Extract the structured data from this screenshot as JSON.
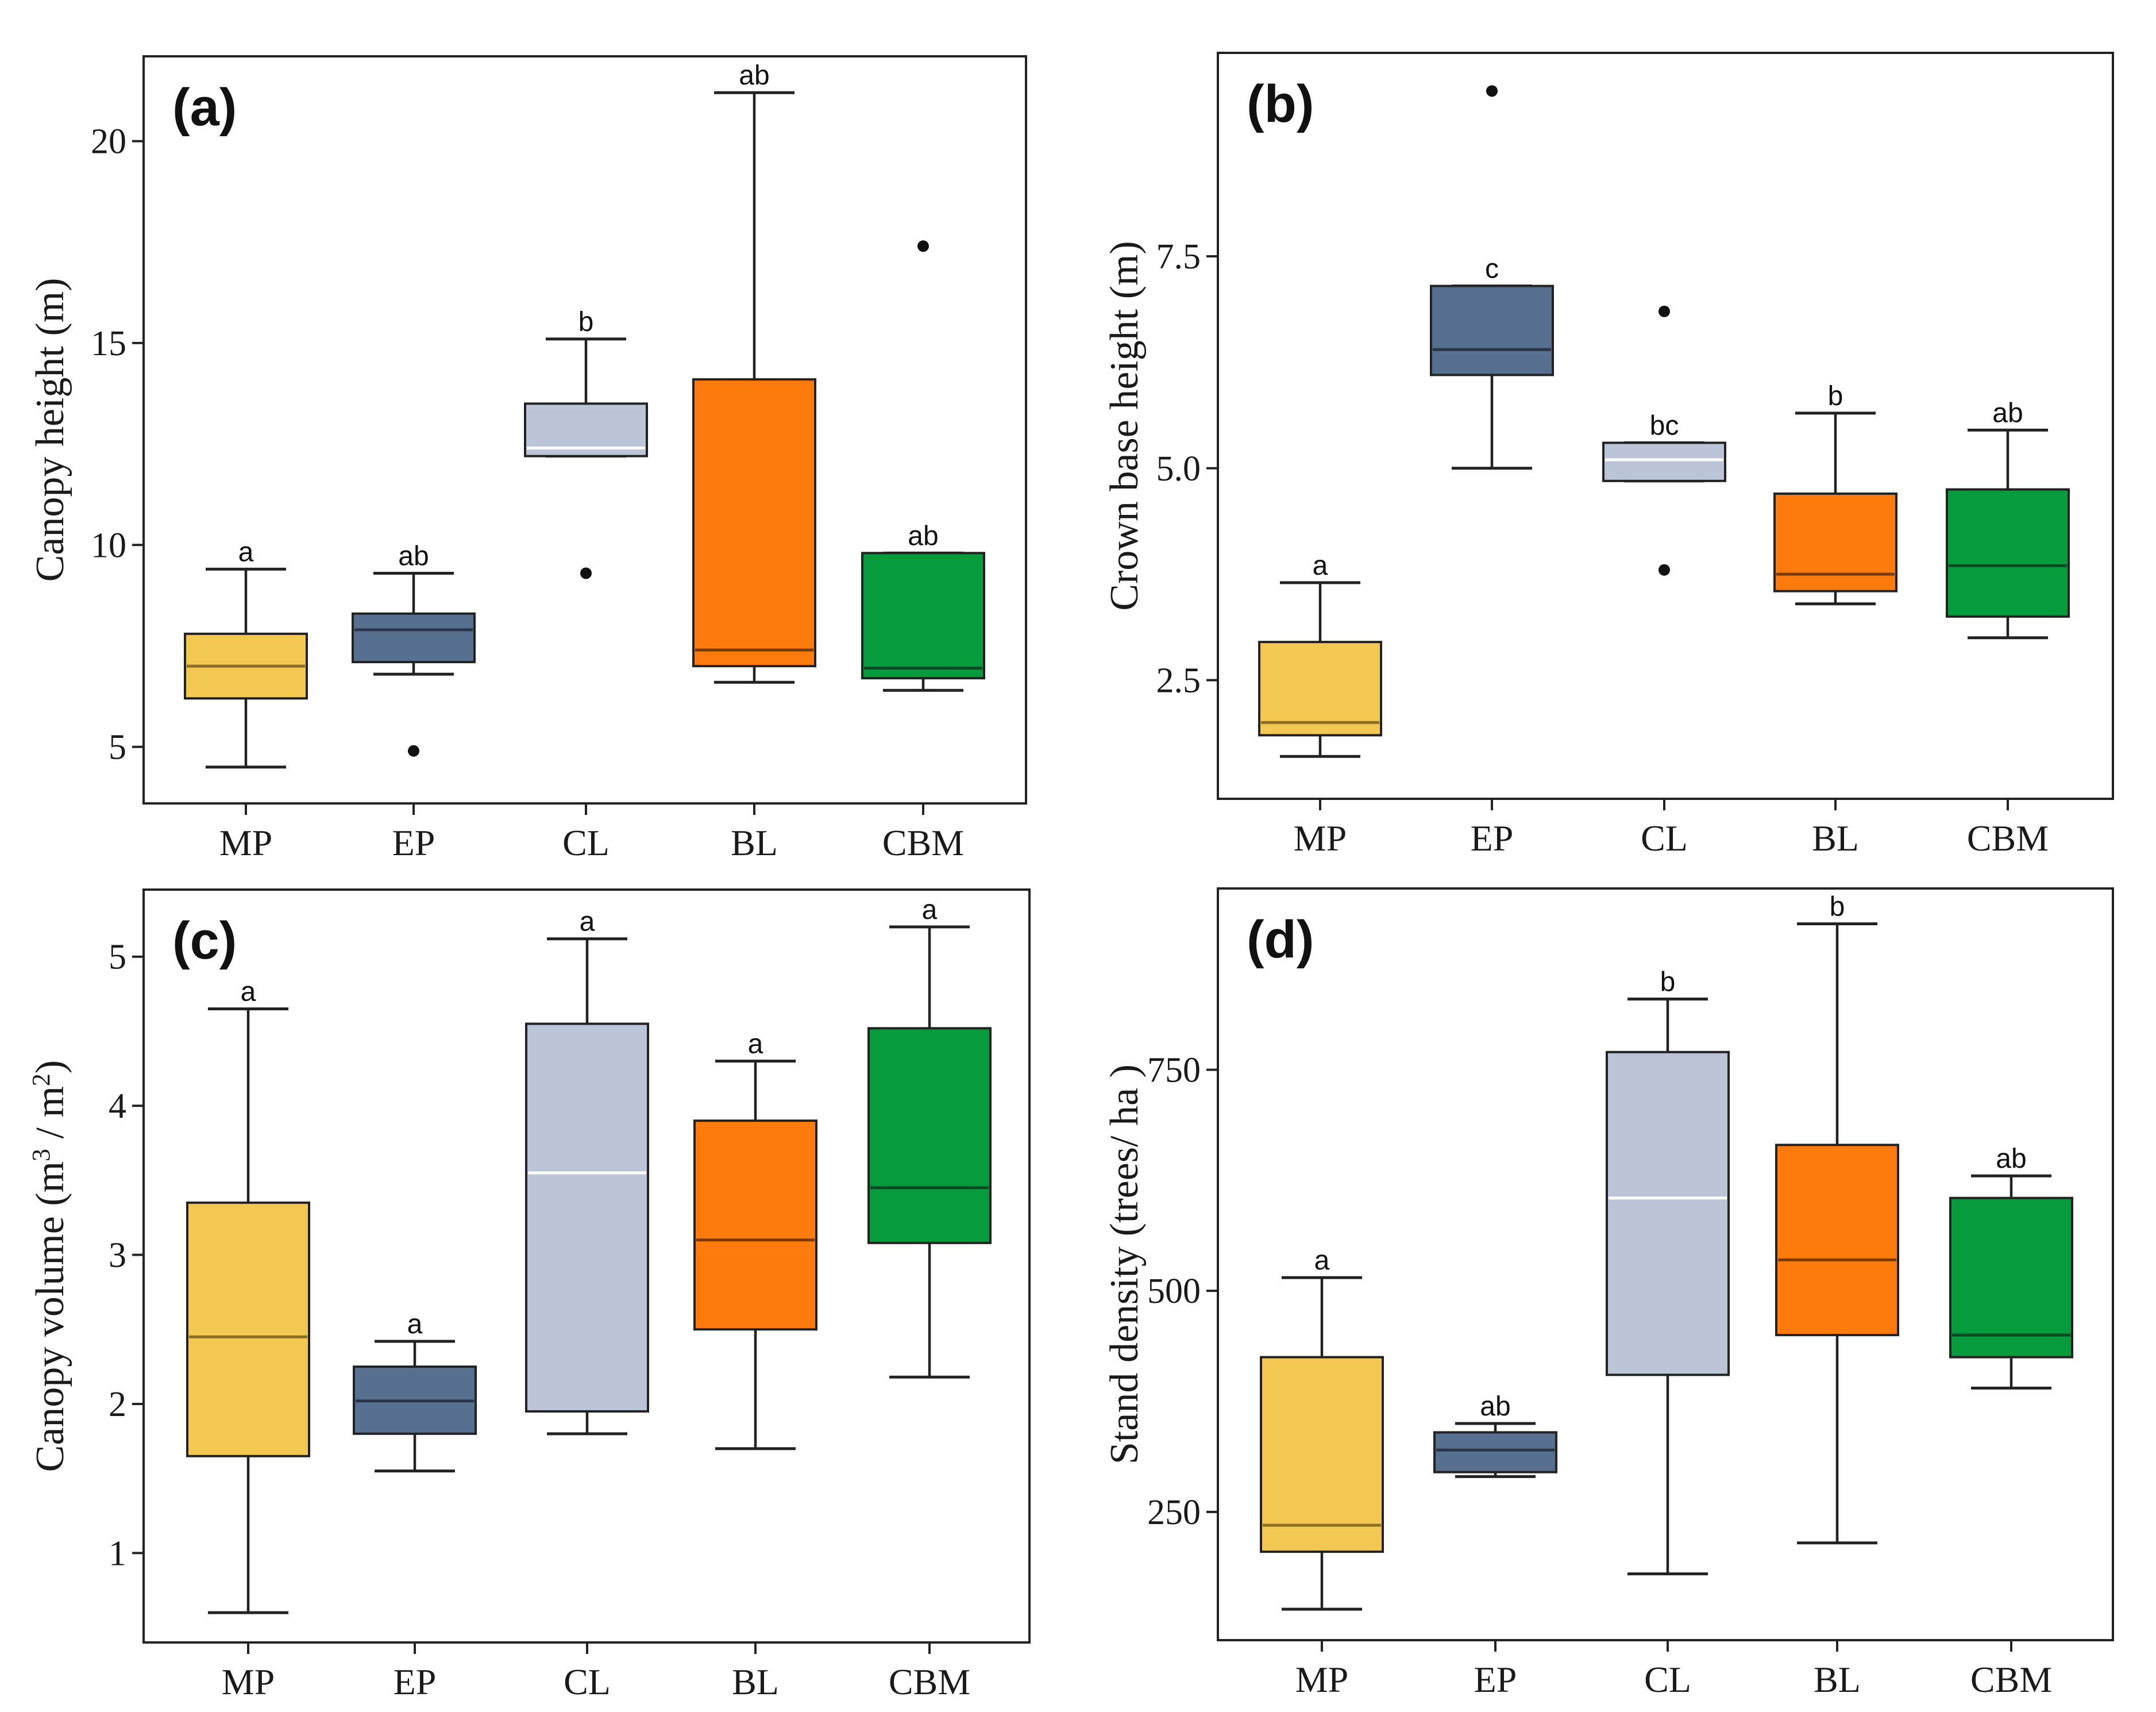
{
  "chart_data": [
    {
      "id": "a",
      "type": "box",
      "panel_label": "(a)",
      "ylabel": "Canopy height (m)",
      "ylabel_parts": [
        {
          "t": "Canopy height (m)"
        }
      ],
      "categories": [
        "MP",
        "EP",
        "CL",
        "BL",
        "CBM"
      ],
      "yticks": [
        5,
        10,
        15,
        20
      ],
      "ylim": [
        3.6,
        22.1
      ],
      "series": [
        {
          "name": "MP",
          "min": 4.5,
          "q1": 6.2,
          "median": 7.0,
          "q3": 7.8,
          "max": 9.4,
          "outliers": [],
          "letter": "a"
        },
        {
          "name": "EP",
          "min": 6.8,
          "q1": 7.1,
          "median": 7.9,
          "q3": 8.3,
          "max": 9.3,
          "outliers": [
            4.9
          ],
          "letter": "ab"
        },
        {
          "name": "CL",
          "min": 12.2,
          "q1": 12.2,
          "median": 12.4,
          "q3": 13.5,
          "max": 15.1,
          "outliers": [
            9.3
          ],
          "letter": "b"
        },
        {
          "name": "BL",
          "min": 6.6,
          "q1": 7.0,
          "median": 7.4,
          "q3": 14.1,
          "max": 21.2,
          "outliers": [],
          "letter": "ab"
        },
        {
          "name": "CBM",
          "min": 6.4,
          "q1": 6.7,
          "median": 6.95,
          "q3": 9.8,
          "max": 9.8,
          "outliers": [
            17.4
          ],
          "letter": "ab"
        }
      ]
    },
    {
      "id": "b",
      "type": "box",
      "panel_label": "(b)",
      "ylabel": "Crown base height (m)",
      "ylabel_parts": [
        {
          "t": "Crown base height (m)"
        }
      ],
      "categories": [
        "MP",
        "EP",
        "CL",
        "BL",
        "CBM"
      ],
      "yticks": [
        2.5,
        5.0,
        7.5
      ],
      "ytick_labels": [
        "2.5",
        "5.0",
        "7.5"
      ],
      "ylim": [
        1.1,
        9.9
      ],
      "series": [
        {
          "name": "MP",
          "min": 1.6,
          "q1": 1.85,
          "median": 2.0,
          "q3": 2.95,
          "max": 3.65,
          "outliers": [],
          "letter": "a"
        },
        {
          "name": "EP",
          "min": 5.0,
          "q1": 6.1,
          "median": 6.4,
          "q3": 7.15,
          "max": 7.15,
          "outliers": [
            9.45
          ],
          "letter": "c"
        },
        {
          "name": "CL",
          "min": 4.85,
          "q1": 4.85,
          "median": 5.1,
          "q3": 5.3,
          "max": 5.3,
          "outliers": [
            6.85,
            3.8
          ],
          "letter": "bc"
        },
        {
          "name": "BL",
          "min": 3.4,
          "q1": 3.55,
          "median": 3.75,
          "q3": 4.7,
          "max": 5.65,
          "outliers": [],
          "letter": "b"
        },
        {
          "name": "CBM",
          "min": 3.0,
          "q1": 3.25,
          "median": 3.85,
          "q3": 4.75,
          "max": 5.45,
          "outliers": [],
          "letter": "ab"
        }
      ]
    },
    {
      "id": "c",
      "type": "box",
      "panel_label": "(c)",
      "ylabel": "Canopy volume (m3 / m2)",
      "ylabel_parts": [
        {
          "t": "Canopy volume (m"
        },
        {
          "t": "3",
          "sup": true
        },
        {
          "t": " / m"
        },
        {
          "t": "2",
          "sup": true
        },
        {
          "t": ")"
        }
      ],
      "categories": [
        "MP",
        "EP",
        "CL",
        "BL",
        "CBM"
      ],
      "yticks": [
        1,
        2,
        3,
        4,
        5
      ],
      "ylim": [
        0.4,
        5.45
      ],
      "series": [
        {
          "name": "MP",
          "min": 0.6,
          "q1": 1.65,
          "median": 2.45,
          "q3": 3.35,
          "max": 4.65,
          "outliers": [],
          "letter": "a"
        },
        {
          "name": "EP",
          "min": 1.55,
          "q1": 1.8,
          "median": 2.02,
          "q3": 2.25,
          "max": 2.42,
          "outliers": [],
          "letter": "a"
        },
        {
          "name": "CL",
          "min": 1.8,
          "q1": 1.95,
          "median": 3.55,
          "q3": 4.55,
          "max": 5.12,
          "outliers": [],
          "letter": "a"
        },
        {
          "name": "BL",
          "min": 1.7,
          "q1": 2.5,
          "median": 3.1,
          "q3": 3.9,
          "max": 4.3,
          "outliers": [],
          "letter": "a"
        },
        {
          "name": "CBM",
          "min": 2.18,
          "q1": 3.08,
          "median": 3.45,
          "q3": 4.52,
          "max": 5.2,
          "outliers": [],
          "letter": "a"
        }
      ]
    },
    {
      "id": "d",
      "type": "box",
      "panel_label": "(d)",
      "ylabel": "Stand density (trees/ ha )",
      "ylabel_parts": [
        {
          "t": "Stand density (trees/ ha )"
        }
      ],
      "categories": [
        "MP",
        "EP",
        "CL",
        "BL",
        "CBM"
      ],
      "yticks": [
        250,
        500,
        750
      ],
      "ylim": [
        105,
        955
      ],
      "series": [
        {
          "name": "MP",
          "min": 140,
          "q1": 205,
          "median": 235,
          "q3": 425,
          "max": 515,
          "outliers": [],
          "letter": "a"
        },
        {
          "name": "EP",
          "min": 290,
          "q1": 295,
          "median": 320,
          "q3": 340,
          "max": 350,
          "outliers": [],
          "letter": "ab"
        },
        {
          "name": "CL",
          "min": 180,
          "q1": 405,
          "median": 605,
          "q3": 770,
          "max": 830,
          "outliers": [],
          "letter": "b"
        },
        {
          "name": "BL",
          "min": 215,
          "q1": 450,
          "median": 535,
          "q3": 665,
          "max": 915,
          "outliers": [],
          "letter": "b"
        },
        {
          "name": "CBM",
          "min": 390,
          "q1": 425,
          "median": 450,
          "q3": 605,
          "max": 630,
          "outliers": [],
          "letter": "ab"
        }
      ]
    }
  ],
  "colors": {
    "MP": "#f2c752",
    "EP": "#58708f",
    "CL": "#bcc4d8",
    "BL": "#fd7b0c",
    "CBM": "#069b3d"
  },
  "median_colors": {
    "MP": "#8a6f22",
    "EP": "#2a3448",
    "CL": "#ffffff",
    "BL": "#7a3a06",
    "CBM": "#0a4a22"
  }
}
